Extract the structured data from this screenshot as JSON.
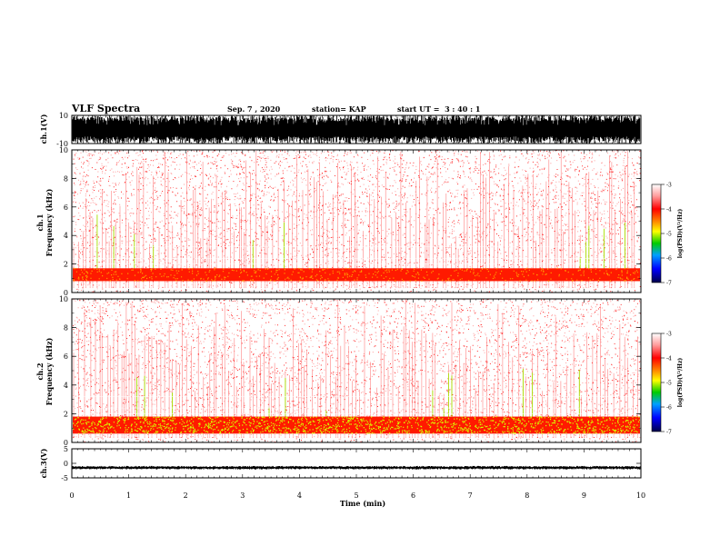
{
  "header": {
    "title": "VLF Spectra",
    "date": "Sep. 7 , 2020",
    "station": "station= KAP",
    "start": "start UT =  3 : 40 : 1"
  },
  "colors": {
    "spectrogram_palette": [
      "#ffffff",
      "#ff9a9a",
      "#ff3b3b",
      "#ff0000",
      "#ff8a00",
      "#ffff00",
      "#00cc00",
      "#00a0ff",
      "#0000ff",
      "#00004a"
    ]
  },
  "chart_data": [
    {
      "type": "line",
      "panel": "waveform-ch1",
      "ylabel": "ch.1(V)",
      "ylim": [
        -10,
        10
      ],
      "yticks": [
        "10",
        "-10"
      ],
      "note_values": "dense black waveform filling most of the +/-10 V range"
    },
    {
      "type": "heatmap",
      "panel": "spectrogram-ch1",
      "ylabel_line1": "ch.1",
      "ylabel_line2": "Frequency (kHz)",
      "ylim": [
        0,
        10
      ],
      "yticks": [
        "0",
        "2",
        "4",
        "6",
        "8",
        "10"
      ],
      "colorbar": {
        "label": "log(PSD)(V²/Hz)",
        "range": [
          -7,
          -3
        ],
        "ticks": [
          "-3",
          "-4",
          "-5",
          "-6",
          "-7"
        ]
      },
      "band_khz": [
        0.8,
        1.7
      ]
    },
    {
      "type": "heatmap",
      "panel": "spectrogram-ch2",
      "ylabel_line1": "ch.2",
      "ylabel_line2": "Frequency (kHz)",
      "ylim": [
        0,
        10
      ],
      "yticks": [
        "0",
        "2",
        "4",
        "6",
        "8",
        "10"
      ],
      "colorbar": {
        "label": "log(PSD)(V²/Hz)",
        "range": [
          -7,
          -3
        ],
        "ticks": [
          "-3",
          "-4",
          "-5",
          "-6",
          "-7"
        ]
      },
      "band_khz": [
        0.6,
        1.8
      ]
    },
    {
      "type": "line",
      "panel": "waveform-ch3",
      "ylabel": "ch.3(V)",
      "ylim": [
        -5,
        5
      ],
      "yticks": [
        "5",
        "0",
        "-5"
      ],
      "note_values": "narrow black band near -1.5 V"
    }
  ],
  "xaxis": {
    "label": "Time (min)",
    "xlim": [
      0,
      10
    ],
    "ticks": [
      "0",
      "1",
      "2",
      "3",
      "4",
      "5",
      "6",
      "7",
      "8",
      "9",
      "10"
    ]
  }
}
